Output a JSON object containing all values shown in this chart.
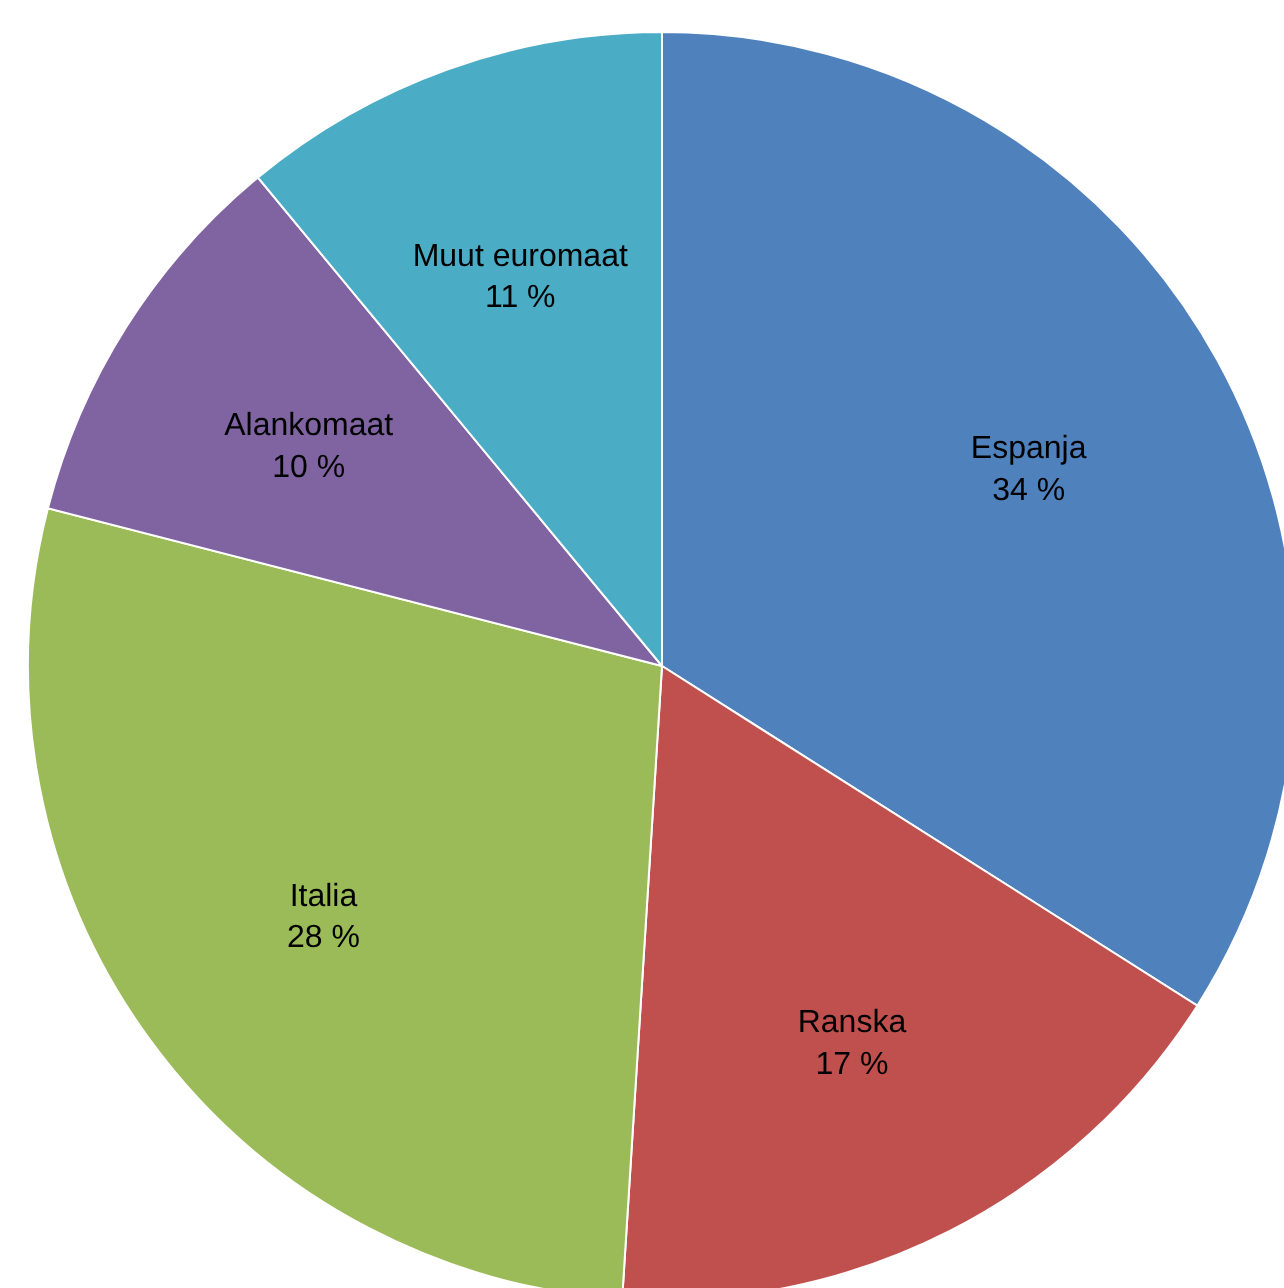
{
  "chart_data": {
    "type": "pie",
    "categories": [
      "Espanja",
      "Ranska",
      "Italia",
      "Alankomaat",
      "Muut euromaat"
    ],
    "values": [
      34,
      17,
      28,
      10,
      11
    ],
    "colors": [
      "#4f81bd",
      "#c0504d",
      "#9bbb59",
      "#8064a2",
      "#4bacc6"
    ],
    "value_labels": [
      "34 %",
      "17 %",
      "28 %",
      "10 %",
      "11 %"
    ]
  }
}
